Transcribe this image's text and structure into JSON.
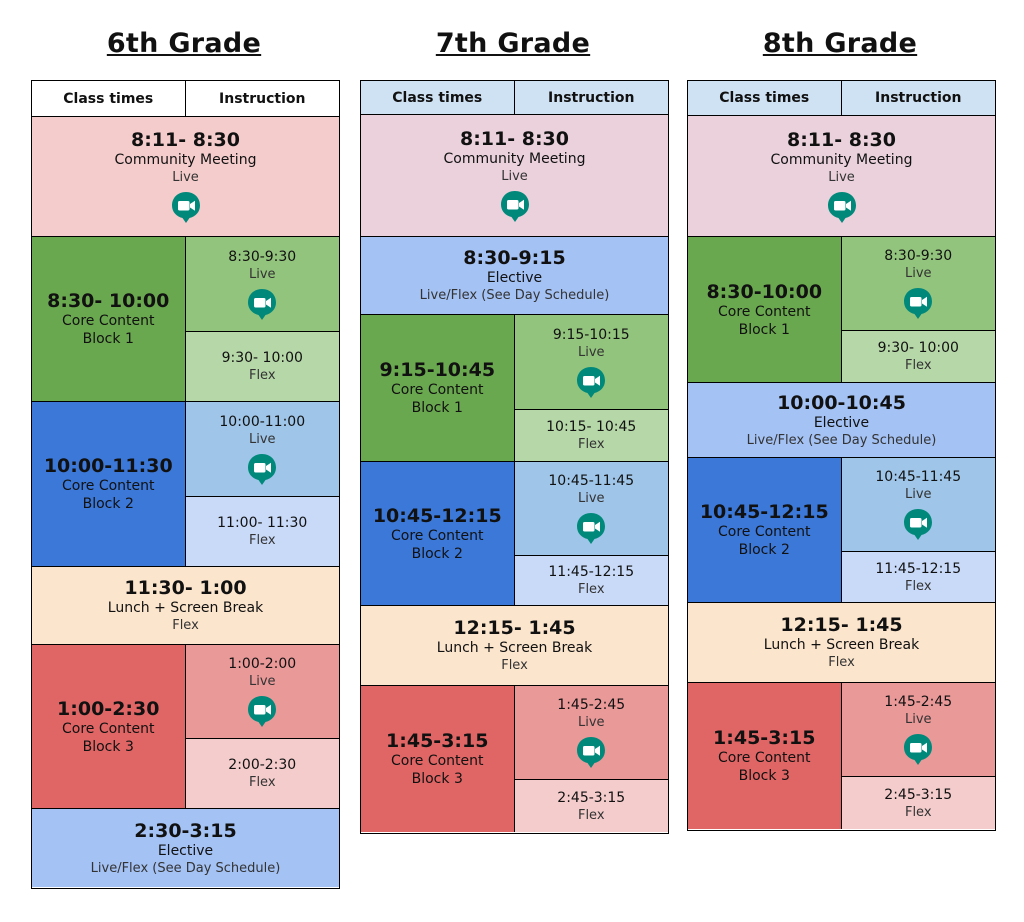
{
  "grades": [
    {
      "title": "6th Grade",
      "header_color": "#ffffff",
      "headers": [
        "Class times",
        "Instruction"
      ],
      "rows": [
        {
          "type": "full",
          "time": "8:11- 8:30",
          "title": "Community Meeting",
          "sub": "Live",
          "icon": "google-meet-icon",
          "color": "#f4cccc"
        },
        {
          "type": "split",
          "time": "8:30- 10:00",
          "title": "Core Content",
          "block": "Block 1",
          "left_color": "#6aa84f",
          "sessions": [
            {
              "time": "8:30-9:30",
              "mode": "Live",
              "icon": "google-meet-icon",
              "color": "#93c47d"
            },
            {
              "time": "9:30- 10:00",
              "mode": "Flex",
              "color": "#b6d7a8"
            }
          ]
        },
        {
          "type": "split",
          "time": "10:00-11:30",
          "title": "Core Content",
          "block": "Block 2",
          "left_color": "#3c78d8",
          "sessions": [
            {
              "time": "10:00-11:00",
              "mode": "Live",
              "icon": "google-meet-icon",
              "color": "#9fc5e8"
            },
            {
              "time": "11:00- 11:30",
              "mode": "Flex",
              "color": "#c9daf8"
            }
          ]
        },
        {
          "type": "full",
          "time": "11:30- 1:00",
          "title": "Lunch + Screen Break",
          "sub": "Flex",
          "color": "#fce5cd"
        },
        {
          "type": "split",
          "time": "1:00-2:30",
          "title": "Core Content",
          "block": "Block 3",
          "left_color": "#e06666",
          "sessions": [
            {
              "time": "1:00-2:00",
              "mode": "Live",
              "icon": "google-meet-icon",
              "color": "#ea9999"
            },
            {
              "time": "2:00-2:30",
              "mode": "Flex",
              "color": "#f4cccc"
            }
          ]
        },
        {
          "type": "full",
          "time": "2:30-3:15",
          "title": "Elective",
          "sub": "Live/Flex (See Day Schedule)",
          "color": "#a4c2f4"
        }
      ]
    },
    {
      "title": "7th Grade",
      "header_color": "#cfe2f3",
      "headers": [
        "Class times",
        "Instruction"
      ],
      "rows": [
        {
          "type": "full",
          "time": "8:11- 8:30",
          "title": "Community Meeting",
          "sub": "Live",
          "icon": "google-meet-icon",
          "color": "#ead1dc"
        },
        {
          "type": "full",
          "time": "8:30-9:15",
          "title": "Elective",
          "sub": "Live/Flex (See Day Schedule)",
          "color": "#a4c2f4"
        },
        {
          "type": "split",
          "time": "9:15-10:45",
          "title": "Core Content",
          "block": "Block 1",
          "left_color": "#6aa84f",
          "sessions": [
            {
              "time": "9:15-10:15",
              "mode": "Live",
              "icon": "google-meet-icon",
              "color": "#93c47d"
            },
            {
              "time": "10:15- 10:45",
              "mode": "Flex",
              "color": "#b6d7a8"
            }
          ]
        },
        {
          "type": "split",
          "time": "10:45-12:15",
          "title": "Core Content",
          "block": "Block 2",
          "left_color": "#3c78d8",
          "sessions": [
            {
              "time": "10:45-11:45",
              "mode": "Live",
              "icon": "google-meet-icon",
              "color": "#9fc5e8"
            },
            {
              "time": "11:45-12:15",
              "mode": "Flex",
              "color": "#c9daf8"
            }
          ]
        },
        {
          "type": "full",
          "time": "12:15- 1:45",
          "title": "Lunch + Screen Break",
          "sub": "Flex",
          "color": "#fce5cd"
        },
        {
          "type": "split",
          "time": "1:45-3:15",
          "title": "Core Content",
          "block": "Block 3",
          "left_color": "#e06666",
          "sessions": [
            {
              "time": "1:45-2:45",
              "mode": "Live",
              "icon": "google-meet-icon",
              "color": "#ea9999"
            },
            {
              "time": "2:45-3:15",
              "mode": "Flex",
              "color": "#f4cccc"
            }
          ]
        }
      ]
    },
    {
      "title": "8th Grade",
      "header_color": "#cfe2f3",
      "headers": [
        "Class times",
        "Instruction"
      ],
      "rows": [
        {
          "type": "full",
          "time": "8:11- 8:30",
          "title": "Community Meeting",
          "sub": "Live",
          "icon": "google-meet-icon",
          "color": "#ead1dc"
        },
        {
          "type": "split",
          "time": "8:30-10:00",
          "title": "Core Content",
          "block": "Block 1",
          "left_color": "#6aa84f",
          "sessions": [
            {
              "time": "8:30-9:30",
              "mode": "Live",
              "icon": "google-meet-icon",
              "color": "#93c47d"
            },
            {
              "time": "9:30- 10:00",
              "mode": "Flex",
              "color": "#b6d7a8"
            }
          ]
        },
        {
          "type": "full",
          "time": "10:00-10:45",
          "title": "Elective",
          "sub": "Live/Flex (See Day Schedule)",
          "color": "#a4c2f4"
        },
        {
          "type": "split",
          "time": "10:45-12:15",
          "title": "Core Content",
          "block": "Block 2",
          "left_color": "#3c78d8",
          "sessions": [
            {
              "time": "10:45-11:45",
              "mode": "Live",
              "icon": "google-meet-icon",
              "color": "#9fc5e8"
            },
            {
              "time": "11:45-12:15",
              "mode": "Flex",
              "color": "#c9daf8"
            }
          ]
        },
        {
          "type": "full",
          "time": "12:15- 1:45",
          "title": "Lunch + Screen Break",
          "sub": "Flex",
          "color": "#fce5cd"
        },
        {
          "type": "split",
          "time": "1:45-3:15",
          "title": "Core Content",
          "block": "Block 3",
          "left_color": "#e06666",
          "sessions": [
            {
              "time": "1:45-2:45",
              "mode": "Live",
              "icon": "google-meet-icon",
              "color": "#ea9999"
            },
            {
              "time": "2:45-3:15",
              "mode": "Flex",
              "color": "#f4cccc"
            }
          ]
        }
      ]
    }
  ]
}
